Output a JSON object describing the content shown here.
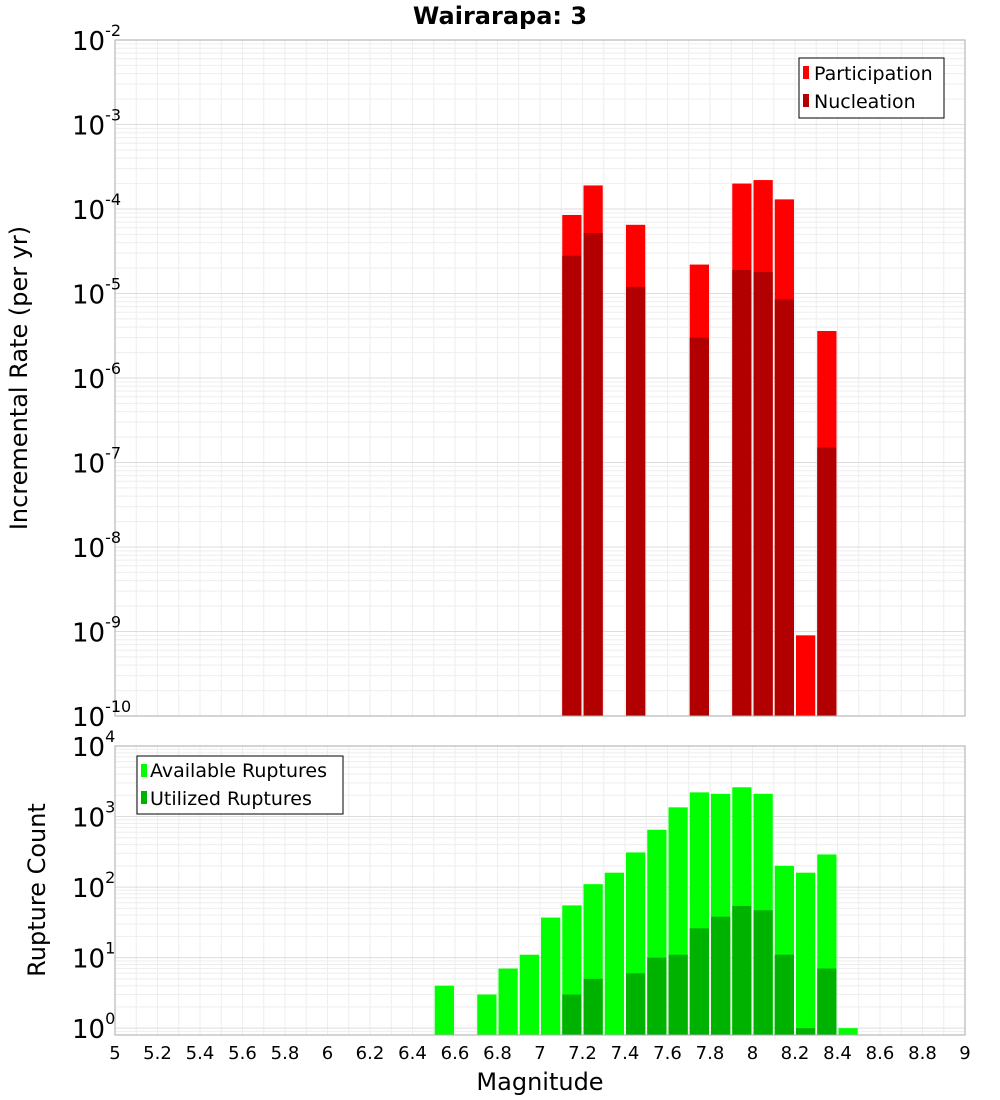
{
  "chart_data": [
    {
      "type": "bar",
      "title": "Wairarapa: 3",
      "xlabel": "",
      "ylabel": "Incremental Rate (per yr)",
      "yscale": "log",
      "ylim": [
        1e-10,
        0.01
      ],
      "xlim": [
        5,
        9
      ],
      "bin_width": 0.1,
      "y_exponents": [
        -10,
        -9,
        -8,
        -7,
        -6,
        -5,
        -4,
        -3,
        -2
      ],
      "legend_position": "top-right",
      "series": [
        {
          "name": "Participation",
          "color": "#ff0000",
          "x": [
            7.15,
            7.25,
            7.45,
            7.75,
            7.95,
            8.05,
            8.15,
            8.25,
            8.35
          ],
          "values": [
            8.5e-05,
            0.00019,
            6.5e-05,
            2.2e-05,
            0.0002,
            0.00022,
            0.00013,
            9e-10,
            3.6e-06
          ]
        },
        {
          "name": "Nucleation",
          "color": "#b20000",
          "x": [
            7.15,
            7.25,
            7.45,
            7.75,
            7.95,
            8.05,
            8.15,
            8.35
          ],
          "values": [
            2.8e-05,
            5.2e-05,
            1.2e-05,
            3e-06,
            1.9e-05,
            1.8e-05,
            8.5e-06,
            1.5e-07
          ]
        }
      ]
    },
    {
      "type": "bar",
      "title": "",
      "xlabel": "Magnitude",
      "ylabel": "Rupture Count",
      "yscale": "log",
      "ylim": [
        0.8,
        10000
      ],
      "xlim": [
        5,
        9
      ],
      "bin_width": 0.1,
      "y_exponents": [
        0,
        1,
        2,
        3,
        4
      ],
      "legend_position": "top-left",
      "x_ticks": [
        "5",
        "5.2",
        "5.4",
        "5.6",
        "5.8",
        "6",
        "6.2",
        "6.4",
        "6.6",
        "6.8",
        "7",
        "7.2",
        "7.4",
        "7.6",
        "7.8",
        "8",
        "8.2",
        "8.4",
        "8.6",
        "8.8",
        "9"
      ],
      "series": [
        {
          "name": "Available Ruptures",
          "color": "#00ff00",
          "x": [
            6.55,
            6.75,
            6.85,
            6.95,
            7.05,
            7.15,
            7.25,
            7.35,
            7.45,
            7.55,
            7.65,
            7.75,
            7.85,
            7.95,
            8.05,
            8.15,
            8.25,
            8.35,
            8.45
          ],
          "values": [
            4,
            3,
            7,
            11,
            37,
            55,
            110,
            160,
            310,
            650,
            1350,
            2200,
            2100,
            2600,
            2100,
            200,
            160,
            290,
            1
          ]
        },
        {
          "name": "Utilized Ruptures",
          "color": "#00b200",
          "x": [
            7.15,
            7.25,
            7.45,
            7.55,
            7.65,
            7.75,
            7.85,
            7.95,
            8.05,
            8.15,
            8.25,
            8.35
          ],
          "values": [
            3,
            5,
            6,
            10,
            11,
            26,
            38,
            54,
            47,
            11,
            1,
            7
          ]
        }
      ]
    }
  ]
}
